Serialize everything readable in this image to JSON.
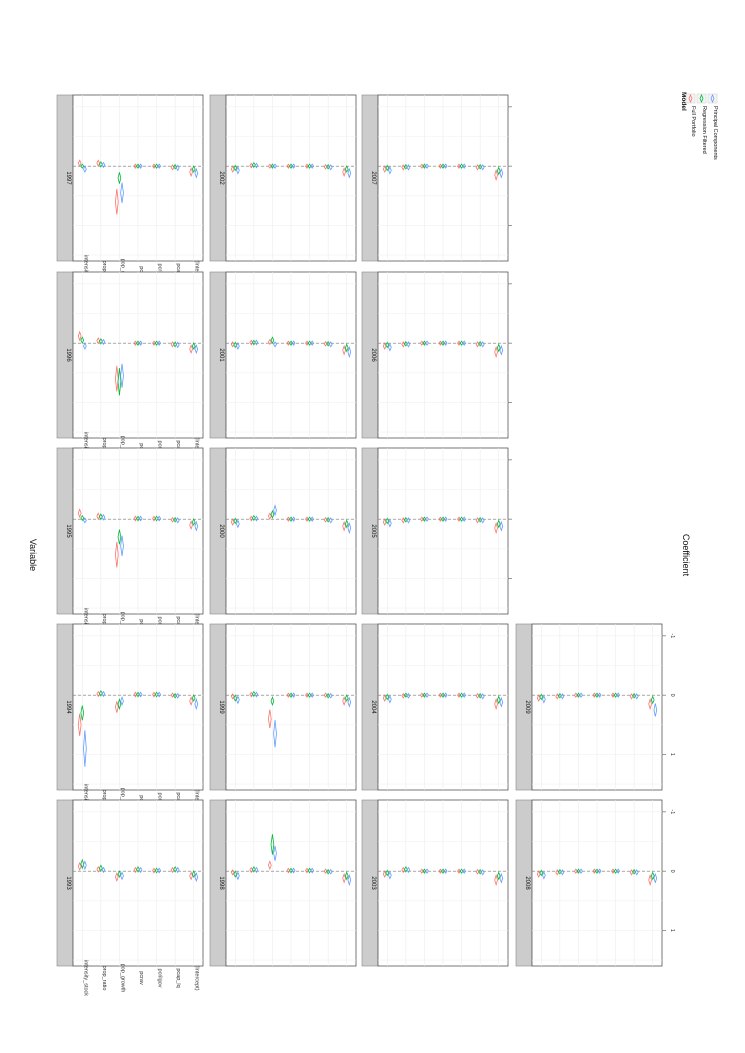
{
  "chart_data": {
    "type": "coefficient-interval-facets",
    "xlabel": "Coefficient",
    "ylabel": "Variable",
    "x_ticks": [
      -1,
      0,
      1
    ],
    "xlim": [
      -1.2,
      1.6
    ],
    "grid": true,
    "variables": [
      "intensity_stock",
      "prop_ratio",
      "pop_growth",
      "pcrav",
      "pcrilgov",
      "pcap_lq",
      "(Intercept)"
    ],
    "legend": {
      "title": "Model",
      "placement": "right",
      "entries": [
        {
          "name": "Full Portfolio",
          "color": "#f8766d"
        },
        {
          "name": "Regression Filtered",
          "color": "#00ba38"
        },
        {
          "name": "Principal Components",
          "color": "#619cff"
        }
      ]
    },
    "facet_grid": [
      [
        "1997",
        "1996",
        "1995",
        "1994",
        "1993"
      ],
      [
        "2002",
        "2001",
        "2000",
        "1999",
        "1998"
      ],
      [
        "2007",
        "2006",
        "2005",
        "2004",
        "2003"
      ],
      [
        "",
        "",
        "",
        "2009",
        "2008"
      ]
    ],
    "panels": [
      {
        "label": "1993",
        "estimates": [
          [
            -0.08,
            -0.12,
            -0.1
          ],
          [
            -0.03,
            -0.05,
            -0.02
          ],
          [
            0.1,
            0.05,
            0.08
          ],
          [
            -0.02,
            -0.03,
            -0.02
          ],
          [
            -0.01,
            -0.01,
            -0.01
          ],
          [
            -0.02,
            -0.03,
            -0.02
          ],
          [
            0.08,
            0.05,
            0.1
          ]
        ]
      },
      {
        "label": "1994",
        "estimates": [
          [
            0.5,
            0.3,
            0.9
          ],
          [
            -0.02,
            -0.03,
            -0.02
          ],
          [
            0.2,
            0.15,
            0.1
          ],
          [
            -0.01,
            -0.01,
            -0.01
          ],
          [
            -0.01,
            -0.01,
            -0.01
          ],
          [
            0,
            0.01,
            0.01
          ],
          [
            0.1,
            0.05,
            0.15
          ]
        ]
      },
      {
        "label": "1995",
        "estimates": [
          [
            -0.1,
            -0.02,
            0.02
          ],
          [
            -0.05,
            -0.04,
            -0.03
          ],
          [
            0.6,
            0.3,
            0.45
          ],
          [
            -0.01,
            -0.01,
            -0.01
          ],
          [
            -0.01,
            -0.01,
            -0.01
          ],
          [
            0.01,
            0.01,
            0.02
          ],
          [
            0.1,
            0.05,
            0.12
          ]
        ]
      },
      {
        "label": "1996",
        "estimates": [
          [
            -0.12,
            -0.05,
            0.05
          ],
          [
            -0.04,
            -0.03,
            -0.02
          ],
          [
            0.6,
            0.65,
            0.55
          ],
          [
            0,
            0,
            0
          ],
          [
            0,
            0,
            0
          ],
          [
            0.02,
            0.02,
            0.03
          ],
          [
            0.1,
            0.05,
            0.1
          ]
        ]
      },
      {
        "label": "1997",
        "estimates": [
          [
            -0.05,
            0,
            0.05
          ],
          [
            -0.05,
            -0.03,
            -0.02
          ],
          [
            0.6,
            0.2,
            0.45
          ],
          [
            0,
            0,
            0
          ],
          [
            0,
            0,
            0
          ],
          [
            0.02,
            0.01,
            0.03
          ],
          [
            0.1,
            0.05,
            0.12
          ]
        ]
      },
      {
        "label": "1998",
        "estimates": [
          [
            0.02,
            0.05,
            0.08
          ],
          [
            -0.02,
            -0.03,
            -0.02
          ],
          [
            -0.1,
            -0.45,
            -0.3
          ],
          [
            -0.01,
            -0.01,
            -0.01
          ],
          [
            -0.01,
            -0.01,
            -0.01
          ],
          [
            0,
            0.01,
            0.01
          ],
          [
            0.12,
            0.08,
            0.15
          ]
        ]
      },
      {
        "label": "1999",
        "estimates": [
          [
            0.02,
            0.05,
            0.08
          ],
          [
            -0.01,
            -0.02,
            -0.01
          ],
          [
            0.4,
            0.1,
            0.65
          ],
          [
            0,
            0,
            0
          ],
          [
            0,
            0,
            0
          ],
          [
            0,
            0.01,
            0.01
          ],
          [
            0.1,
            0.05,
            0.12
          ]
        ]
      },
      {
        "label": "2000",
        "estimates": [
          [
            0.05,
            0.03,
            0.08
          ],
          [
            -0.01,
            -0.02,
            -0.01
          ],
          [
            -0.05,
            -0.08,
            -0.15
          ],
          [
            0,
            0,
            0
          ],
          [
            0,
            0,
            0
          ],
          [
            0.01,
            0.01,
            0.02
          ],
          [
            0.12,
            0.08,
            0.15
          ]
        ]
      },
      {
        "label": "2001",
        "estimates": [
          [
            0.02,
            0.03,
            0.05
          ],
          [
            -0.01,
            -0.01,
            -0.01
          ],
          [
            -0.02,
            -0.05,
            0.02
          ],
          [
            0,
            0,
            0
          ],
          [
            0,
            0,
            0
          ],
          [
            0.01,
            0.01,
            0.02
          ],
          [
            0.12,
            0.08,
            0.15
          ]
        ]
      },
      {
        "label": "2002",
        "estimates": [
          [
            0.05,
            0.03,
            0.07
          ],
          [
            -0.01,
            -0.02,
            -0.01
          ],
          [
            0,
            0,
            0
          ],
          [
            0,
            0,
            0
          ],
          [
            0,
            0,
            0
          ],
          [
            0.01,
            0.01,
            0.02
          ],
          [
            0.1,
            0.05,
            0.12
          ]
        ]
      },
      {
        "label": "2003",
        "estimates": [
          [
            0.05,
            0.03,
            0.07
          ],
          [
            -0.02,
            -0.03,
            -0.02
          ],
          [
            0,
            0,
            0
          ],
          [
            0,
            0,
            0
          ],
          [
            0,
            0,
            0
          ],
          [
            0.01,
            0.01,
            0.02
          ],
          [
            0.15,
            0.08,
            0.12
          ]
        ]
      },
      {
        "label": "2004",
        "estimates": [
          [
            0.05,
            0.03,
            0.07
          ],
          [
            0.01,
            0,
            0.01
          ],
          [
            0,
            0,
            0
          ],
          [
            0,
            0,
            0
          ],
          [
            0,
            0,
            0
          ],
          [
            0.01,
            0.01,
            0.02
          ],
          [
            0.15,
            0.08,
            0.12
          ]
        ]
      },
      {
        "label": "2005",
        "estimates": [
          [
            0.05,
            0.03,
            0.07
          ],
          [
            0.02,
            0.01,
            0.02
          ],
          [
            0,
            0,
            0
          ],
          [
            0,
            0,
            0
          ],
          [
            0,
            0,
            0
          ],
          [
            0.02,
            0.01,
            0.02
          ],
          [
            0.15,
            0.08,
            0.12
          ]
        ]
      },
      {
        "label": "2006",
        "estimates": [
          [
            0.05,
            0.03,
            0.07
          ],
          [
            0.02,
            0.01,
            0.02
          ],
          [
            0,
            0,
            0
          ],
          [
            0,
            0,
            0
          ],
          [
            0,
            0,
            0
          ],
          [
            0.02,
            0.01,
            0.02
          ],
          [
            0.15,
            0.08,
            0.12
          ]
        ]
      },
      {
        "label": "2007",
        "estimates": [
          [
            0.05,
            0.03,
            0.07
          ],
          [
            0.02,
            0.01,
            0.02
          ],
          [
            0,
            0,
            0
          ],
          [
            0,
            0,
            0
          ],
          [
            0,
            0,
            0
          ],
          [
            0.02,
            0.01,
            0.02
          ],
          [
            0.15,
            0.08,
            0.12
          ]
        ]
      },
      {
        "label": "2008",
        "estimates": [
          [
            0.05,
            0.03,
            0.07
          ],
          [
            0.02,
            0.01,
            0.02
          ],
          [
            0,
            0,
            0
          ],
          [
            0,
            0,
            0
          ],
          [
            0,
            0,
            0
          ],
          [
            0.02,
            0.01,
            0.02
          ],
          [
            0.15,
            0.08,
            0.12
          ]
        ]
      },
      {
        "label": "2009",
        "estimates": [
          [
            0.05,
            0.03,
            0.07
          ],
          [
            0.02,
            0.01,
            0.02
          ],
          [
            0,
            0,
            0
          ],
          [
            0,
            0,
            0
          ],
          [
            0,
            0,
            0
          ],
          [
            0.02,
            0.01,
            0.02
          ],
          [
            0.15,
            0.08,
            0.25
          ]
        ]
      }
    ]
  }
}
